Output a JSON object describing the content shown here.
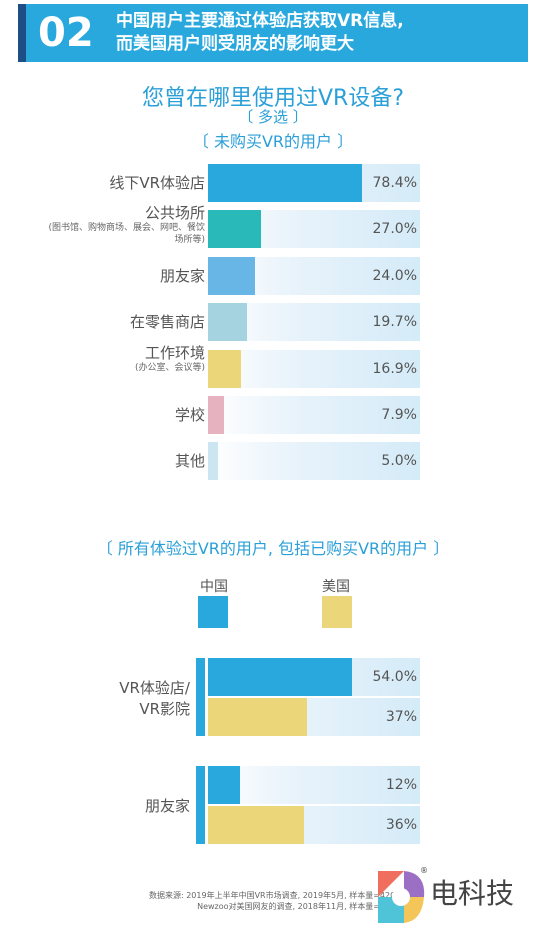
{
  "header": {
    "number": "02",
    "line1": "中国用户主要通过体验店获取VR信息,",
    "line2": "而美国用户则受朋友的影响更大"
  },
  "colors": {
    "banner": "#29a8de",
    "banner_edge": "#1d4f86",
    "title": "#2a9fd8"
  },
  "chart_data": [
    {
      "type": "bar",
      "title": "您曾在哪里使用过VR设备?",
      "subtitle1": "〔 多选 〕",
      "subtitle2": "〔 未购买VR的用户 〕",
      "categories": [
        {
          "label": "线下VR体验店",
          "sub": "",
          "value": 78.4,
          "value_label": "78.4%",
          "color": "#29a8de"
        },
        {
          "label": "公共场所",
          "sub": "(图书馆、购物商场、展会、网吧、餐饮场所等)",
          "value": 27.0,
          "value_label": "27.0%",
          "color": "#2ab9b9"
        },
        {
          "label": "朋友家",
          "sub": "",
          "value": 24.0,
          "value_label": "24.0%",
          "color": "#67b6e6"
        },
        {
          "label": "在零售商店",
          "sub": "",
          "value": 19.7,
          "value_label": "19.7%",
          "color": "#a5d3df"
        },
        {
          "label": "工作环境",
          "sub": "(办公室、会议等)",
          "value": 16.9,
          "value_label": "16.9%",
          "color": "#ecd67a"
        },
        {
          "label": "学校",
          "sub": "",
          "value": 7.9,
          "value_label": "7.9%",
          "color": "#e6b2bf"
        },
        {
          "label": "其他",
          "sub": "",
          "value": 5.0,
          "value_label": "5.0%",
          "color": "#cbe6f1"
        }
      ],
      "xlim": [
        0,
        100
      ]
    },
    {
      "type": "bar",
      "title": "〔 所有体验过VR的用户, 包括已购买VR的用户 〕",
      "legend": [
        {
          "name": "中国",
          "color": "#29a8de"
        },
        {
          "name": "美国",
          "color": "#ecd67a"
        }
      ],
      "groups": [
        {
          "label1": "VR体验店/",
          "label2": "VR影院",
          "china": 54.0,
          "china_label": "54.0%",
          "us": 37,
          "us_label": "37%"
        },
        {
          "label1": "朋友家",
          "label2": "",
          "china": 12,
          "china_label": "12%",
          "us": 36,
          "us_label": "36%"
        }
      ],
      "xlim": [
        0,
        100
      ]
    }
  ],
  "source": {
    "line1": "数据来源: 2019年上半年中国VR市场调查, 2019年5月, 样本量=4200+",
    "line2": "Newzoo对美国网友的调查, 2018年11月, 样本量=2500+"
  },
  "logo": {
    "text": "电科技",
    "mark": "®"
  }
}
